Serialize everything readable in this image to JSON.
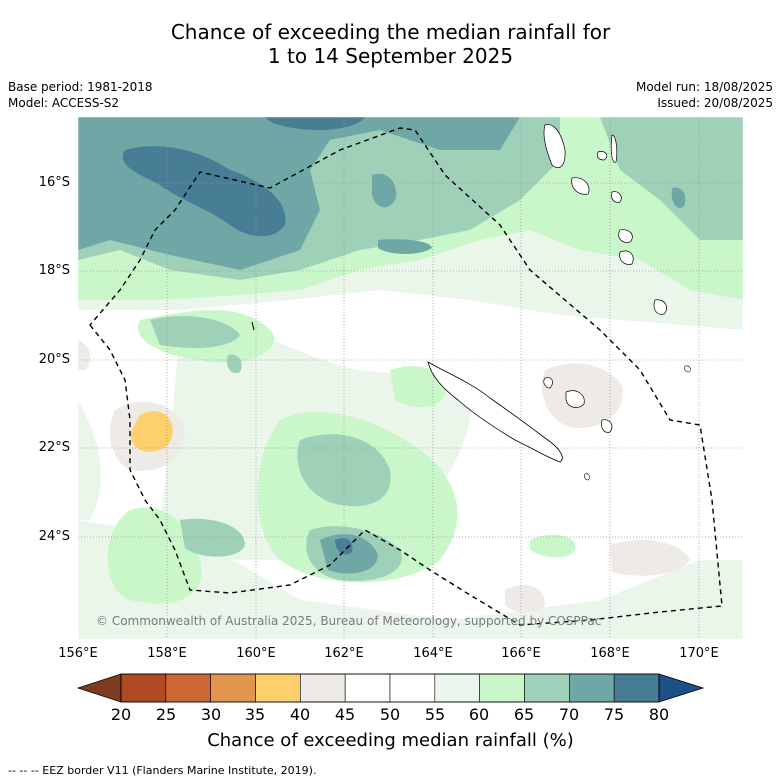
{
  "title": {
    "line1": "Chance of exceeding the median rainfall for",
    "line2": "1 to 14 September 2025"
  },
  "meta": {
    "base_period": "Base period: 1981-2018",
    "model": "Model: ACCESS-S2",
    "model_run": "Model run: 18/08/2025",
    "issued": "Issued: 20/08/2025"
  },
  "map": {
    "lat_labels": [
      "16°S",
      "18°S",
      "20°S",
      "22°S",
      "24°S"
    ],
    "lon_labels": [
      "156°E",
      "158°E",
      "160°E",
      "162°E",
      "164°E",
      "166°E",
      "168°E",
      "170°E"
    ],
    "copyright": "© Commonwealth of Australia 2025, Bureau of Meteorology, supported by COSPPac",
    "colors": {
      "below_20": "#7f3b1e",
      "20_25": "#b04a23",
      "25_30": "#cc6633",
      "30_35": "#e2964d",
      "35_40": "#fdd06b",
      "40_45": "#eeebe7",
      "45_50": "#ffffff",
      "50_55": "#ffffff",
      "55_60": "#eaf6ea",
      "60_65": "#caf7c9",
      "65_70": "#9fd1b9",
      "70_75": "#6fa7a6",
      "75_80": "#487d96",
      "above_80": "#1e4f86"
    }
  },
  "colorbar": {
    "tick_labels": [
      "20",
      "25",
      "30",
      "35",
      "40",
      "45",
      "50",
      "55",
      "60",
      "65",
      "70",
      "75",
      "80"
    ],
    "colors": [
      "#b04a23",
      "#cc6633",
      "#e2964d",
      "#fdd06b",
      "#eeebe7",
      "#ffffff",
      "#ffffff",
      "#eaf6ea",
      "#caf7c9",
      "#9fd1b9",
      "#6fa7a6",
      "#487d96"
    ],
    "low_color": "#7f3b1e",
    "high_color": "#1e4f86",
    "title": "Chance of exceeding median rainfall (%)"
  },
  "footnote": "--  --  -- EEZ border V11 (Flanders Marine Institute, 2019)."
}
